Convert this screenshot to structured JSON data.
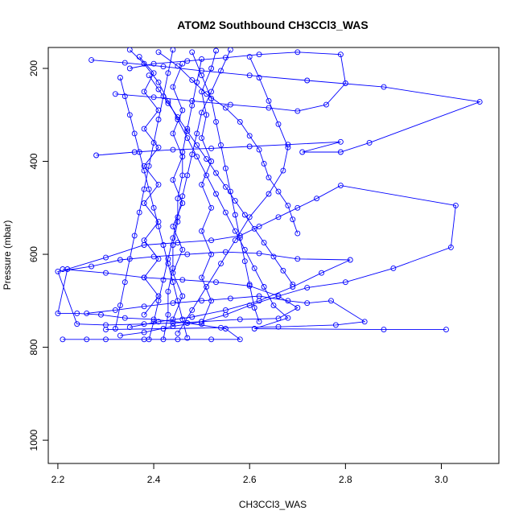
{
  "chart_data": {
    "type": "line",
    "title": "ATOM2 Southbound CH3CCl3_WAS",
    "xlabel": "CH3CCl3_WAS",
    "ylabel": "Pressure (mbar)",
    "xlim": [
      2.18,
      3.12
    ],
    "ylim": [
      1050,
      155
    ],
    "y_axis_inverted": true,
    "xticks": [
      2.2,
      2.4,
      2.6,
      2.8,
      3.0
    ],
    "yticks": [
      200,
      400,
      600,
      800,
      1000
    ],
    "xtick_labels": [
      "2.2",
      "2.4",
      "2.6",
      "2.8",
      "3.0"
    ],
    "ytick_labels": [
      "200",
      "400",
      "600",
      "800",
      "1000"
    ],
    "grid": false,
    "legend": "none",
    "marker": "open-circle",
    "series": [
      {
        "points": [
          [
            2.21,
            783
          ],
          [
            2.26,
            783
          ],
          [
            2.3,
            783
          ],
          [
            2.38,
            783
          ],
          [
            2.45,
            783
          ],
          [
            2.52,
            783
          ],
          [
            2.58,
            783
          ],
          [
            2.55,
            760
          ],
          [
            2.47,
            748
          ],
          [
            2.4,
            740
          ],
          [
            2.34,
            737
          ],
          [
            2.29,
            730
          ],
          [
            2.24,
            727
          ],
          [
            2.2,
            727
          ],
          [
            2.22,
            632
          ],
          [
            2.3,
            607
          ],
          [
            2.38,
            580
          ],
          [
            2.45,
            575
          ],
          [
            2.52,
            570
          ],
          [
            2.58,
            560
          ],
          [
            2.62,
            540
          ],
          [
            2.66,
            520
          ],
          [
            2.7,
            500
          ],
          [
            2.74,
            480
          ],
          [
            2.79,
            452
          ],
          [
            3.03,
            495
          ],
          [
            3.02,
            585
          ],
          [
            2.9,
            630
          ],
          [
            2.8,
            660
          ],
          [
            2.72,
            672
          ],
          [
            2.66,
            690
          ],
          [
            2.6,
            710
          ],
          [
            2.55,
            730
          ],
          [
            2.5,
            745
          ],
          [
            2.44,
            755
          ],
          [
            2.38,
            768
          ],
          [
            2.33,
            775
          ]
        ]
      },
      {
        "points": [
          [
            2.21,
            632
          ],
          [
            2.3,
            640
          ],
          [
            2.38,
            650
          ],
          [
            2.46,
            655
          ],
          [
            2.53,
            660
          ],
          [
            2.6,
            668
          ],
          [
            2.66,
            690
          ],
          [
            2.7,
            715
          ],
          [
            2.66,
            738
          ],
          [
            2.58,
            740
          ],
          [
            2.5,
            745
          ],
          [
            2.44,
            748
          ],
          [
            2.38,
            750
          ],
          [
            2.3,
            752
          ],
          [
            2.24,
            750
          ],
          [
            2.2,
            637
          ],
          [
            2.27,
            626
          ],
          [
            2.33,
            612
          ],
          [
            2.4,
            605
          ],
          [
            2.47,
            600
          ],
          [
            2.55,
            595
          ],
          [
            2.62,
            598
          ],
          [
            2.7,
            610
          ],
          [
            2.81,
            612
          ],
          [
            2.75,
            640
          ],
          [
            2.69,
            670
          ],
          [
            2.62,
            700
          ],
          [
            2.55,
            720
          ],
          [
            2.48,
            735
          ],
          [
            2.41,
            745
          ],
          [
            2.35,
            757
          ]
        ]
      },
      {
        "points": [
          [
            2.35,
            160
          ],
          [
            2.38,
            190
          ],
          [
            2.41,
            230
          ],
          [
            2.43,
            270
          ],
          [
            2.45,
            310
          ],
          [
            2.47,
            350
          ],
          [
            2.49,
            390
          ],
          [
            2.51,
            430
          ],
          [
            2.53,
            470
          ],
          [
            2.55,
            510
          ],
          [
            2.57,
            550
          ],
          [
            2.59,
            590
          ],
          [
            2.61,
            630
          ],
          [
            2.63,
            670
          ],
          [
            2.65,
            710
          ],
          [
            2.68,
            737
          ],
          [
            2.61,
            760
          ],
          [
            2.88,
            762
          ],
          [
            3.01,
            762
          ]
        ]
      },
      {
        "points": [
          [
            2.28,
            387
          ],
          [
            2.36,
            380
          ],
          [
            2.44,
            375
          ],
          [
            2.52,
            372
          ],
          [
            2.6,
            368
          ],
          [
            2.68,
            364
          ],
          [
            2.79,
            358
          ],
          [
            2.71,
            380
          ],
          [
            2.79,
            380
          ],
          [
            2.85,
            360
          ],
          [
            3.08,
            272
          ],
          [
            2.88,
            240
          ],
          [
            2.72,
            226
          ],
          [
            2.6,
            215
          ],
          [
            2.5,
            205
          ],
          [
            2.42,
            196
          ],
          [
            2.34,
            188
          ],
          [
            2.27,
            182
          ]
        ]
      },
      {
        "points": [
          [
            2.32,
            255
          ],
          [
            2.4,
            262
          ],
          [
            2.48,
            270
          ],
          [
            2.56,
            278
          ],
          [
            2.64,
            285
          ],
          [
            2.7,
            292
          ],
          [
            2.76,
            278
          ],
          [
            2.8,
            232
          ],
          [
            2.79,
            170
          ],
          [
            2.7,
            165
          ],
          [
            2.62,
            170
          ],
          [
            2.55,
            177
          ],
          [
            2.47,
            184
          ],
          [
            2.4,
            190
          ],
          [
            2.35,
            200
          ]
        ]
      },
      {
        "points": [
          [
            2.33,
            220
          ],
          [
            2.34,
            260
          ],
          [
            2.35,
            300
          ],
          [
            2.36,
            340
          ],
          [
            2.37,
            380
          ],
          [
            2.38,
            420
          ],
          [
            2.39,
            460
          ],
          [
            2.4,
            500
          ],
          [
            2.41,
            540
          ],
          [
            2.42,
            580
          ],
          [
            2.43,
            620
          ],
          [
            2.44,
            660
          ],
          [
            2.45,
            700
          ],
          [
            2.46,
            740
          ],
          [
            2.47,
            780
          ]
        ]
      },
      {
        "points": [
          [
            2.44,
            160
          ],
          [
            2.43,
            210
          ],
          [
            2.42,
            260
          ],
          [
            2.41,
            310
          ],
          [
            2.4,
            360
          ],
          [
            2.39,
            410
          ],
          [
            2.38,
            460
          ],
          [
            2.37,
            510
          ],
          [
            2.36,
            560
          ],
          [
            2.35,
            610
          ],
          [
            2.34,
            660
          ],
          [
            2.33,
            710
          ],
          [
            2.32,
            760
          ]
        ]
      },
      {
        "points": [
          [
            2.48,
            165
          ],
          [
            2.5,
            215
          ],
          [
            2.52,
            265
          ],
          [
            2.53,
            315
          ],
          [
            2.54,
            365
          ],
          [
            2.55,
            415
          ],
          [
            2.56,
            465
          ],
          [
            2.57,
            515
          ],
          [
            2.58,
            565
          ],
          [
            2.59,
            615
          ],
          [
            2.6,
            665
          ],
          [
            2.61,
            715
          ],
          [
            2.62,
            745
          ]
        ]
      },
      {
        "points": [
          [
            2.56,
            160
          ],
          [
            2.54,
            205
          ],
          [
            2.52,
            250
          ],
          [
            2.5,
            295
          ],
          [
            2.49,
            340
          ],
          [
            2.48,
            385
          ],
          [
            2.47,
            430
          ],
          [
            2.46,
            475
          ],
          [
            2.45,
            520
          ],
          [
            2.44,
            565
          ],
          [
            2.43,
            610
          ],
          [
            2.42,
            655
          ],
          [
            2.41,
            700
          ],
          [
            2.4,
            745
          ],
          [
            2.39,
            783
          ]
        ]
      },
      {
        "points": [
          [
            2.6,
            175
          ],
          [
            2.62,
            220
          ],
          [
            2.64,
            270
          ],
          [
            2.66,
            320
          ],
          [
            2.68,
            370
          ],
          [
            2.67,
            420
          ],
          [
            2.64,
            470
          ],
          [
            2.6,
            520
          ],
          [
            2.57,
            570
          ],
          [
            2.54,
            620
          ],
          [
            2.51,
            670
          ],
          [
            2.48,
            720
          ],
          [
            2.45,
            770
          ]
        ]
      },
      {
        "points": [
          [
            2.39,
            215
          ],
          [
            2.41,
            245
          ],
          [
            2.43,
            275
          ],
          [
            2.45,
            305
          ],
          [
            2.47,
            335
          ],
          [
            2.49,
            365
          ],
          [
            2.51,
            395
          ],
          [
            2.53,
            425
          ],
          [
            2.55,
            455
          ],
          [
            2.57,
            485
          ],
          [
            2.59,
            515
          ],
          [
            2.61,
            545
          ],
          [
            2.63,
            575
          ],
          [
            2.65,
            605
          ],
          [
            2.67,
            635
          ],
          [
            2.69,
            665
          ]
        ]
      },
      {
        "points": [
          [
            2.5,
            180
          ],
          [
            2.49,
            230
          ],
          [
            2.48,
            280
          ],
          [
            2.47,
            330
          ],
          [
            2.46,
            380
          ],
          [
            2.46,
            430
          ],
          [
            2.45,
            480
          ],
          [
            2.45,
            530
          ],
          [
            2.44,
            580
          ],
          [
            2.44,
            630
          ],
          [
            2.43,
            680
          ],
          [
            2.43,
            730
          ],
          [
            2.42,
            783
          ]
        ]
      },
      {
        "points": [
          [
            2.26,
            727
          ],
          [
            2.32,
            720
          ],
          [
            2.38,
            712
          ],
          [
            2.44,
            705
          ],
          [
            2.5,
            700
          ],
          [
            2.56,
            695
          ],
          [
            2.62,
            690
          ],
          [
            2.68,
            700
          ],
          [
            2.72,
            705
          ],
          [
            2.77,
            700
          ],
          [
            2.84,
            745
          ],
          [
            2.78,
            752
          ],
          [
            2.66,
            756
          ],
          [
            2.54,
            758
          ],
          [
            2.42,
            760
          ],
          [
            2.3,
            762
          ]
        ]
      },
      {
        "points": [
          [
            2.41,
            165
          ],
          [
            2.45,
            195
          ],
          [
            2.48,
            225
          ],
          [
            2.51,
            255
          ],
          [
            2.55,
            285
          ],
          [
            2.58,
            315
          ],
          [
            2.6,
            345
          ],
          [
            2.62,
            375
          ],
          [
            2.63,
            405
          ],
          [
            2.64,
            435
          ],
          [
            2.66,
            465
          ],
          [
            2.68,
            495
          ],
          [
            2.69,
            525
          ],
          [
            2.7,
            555
          ]
        ]
      },
      {
        "points": [
          [
            2.46,
            190
          ],
          [
            2.44,
            240
          ],
          [
            2.46,
            290
          ],
          [
            2.44,
            340
          ],
          [
            2.46,
            390
          ],
          [
            2.44,
            440
          ],
          [
            2.46,
            490
          ],
          [
            2.44,
            540
          ],
          [
            2.46,
            590
          ],
          [
            2.44,
            640
          ],
          [
            2.46,
            690
          ],
          [
            2.44,
            740
          ]
        ]
      },
      {
        "points": [
          [
            2.53,
            162
          ],
          [
            2.52,
            200
          ],
          [
            2.5,
            250
          ],
          [
            2.51,
            300
          ],
          [
            2.5,
            350
          ],
          [
            2.52,
            400
          ],
          [
            2.5,
            450
          ],
          [
            2.52,
            500
          ],
          [
            2.5,
            550
          ],
          [
            2.52,
            600
          ],
          [
            2.5,
            650
          ],
          [
            2.52,
            700
          ],
          [
            2.5,
            750
          ]
        ]
      },
      {
        "points": [
          [
            2.37,
            175
          ],
          [
            2.4,
            210
          ],
          [
            2.38,
            250
          ],
          [
            2.41,
            290
          ],
          [
            2.38,
            330
          ],
          [
            2.41,
            370
          ],
          [
            2.38,
            410
          ],
          [
            2.41,
            450
          ],
          [
            2.38,
            490
          ],
          [
            2.41,
            530
          ],
          [
            2.38,
            570
          ],
          [
            2.41,
            610
          ],
          [
            2.38,
            650
          ],
          [
            2.41,
            690
          ],
          [
            2.38,
            730
          ]
        ]
      }
    ]
  }
}
